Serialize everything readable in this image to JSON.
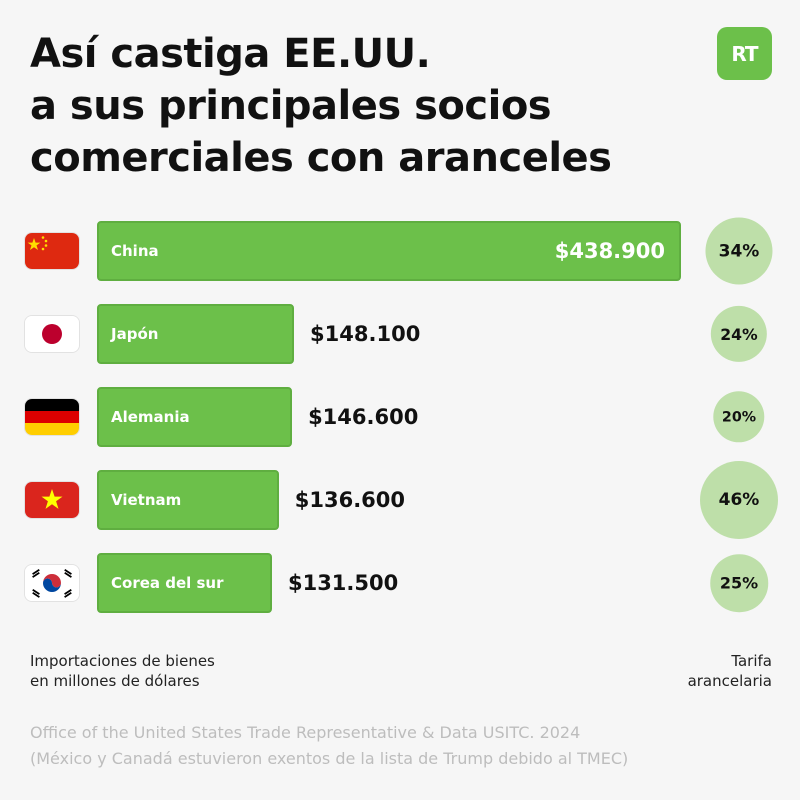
{
  "logo": {
    "text": "RT",
    "color": "#6cc04a"
  },
  "chart_data": {
    "type": "bar",
    "orientation": "horizontal",
    "title_lines": [
      "Así castiga EE.UU.",
      "a sus principales socios",
      "comerciales con aranceles"
    ],
    "categories": [
      "China",
      "Japón",
      "Alemania",
      "Vietnam",
      "Corea del sur"
    ],
    "flags": [
      "china-flag-icon",
      "japan-flag-icon",
      "germany-flag-icon",
      "vietnam-flag-icon",
      "south-korea-flag-icon"
    ],
    "series": [
      {
        "values": [
          438900,
          148100,
          146600,
          136600,
          131500
        ]
      }
    ],
    "value_labels": [
      "$438.900",
      "$148.100",
      "$146.600",
      "$136.600",
      "$131.500"
    ],
    "tariffs": [
      34,
      24,
      20,
      46,
      25
    ],
    "tariff_labels": [
      "34%",
      "24%",
      "20%",
      "46%",
      "25%"
    ],
    "xlabel_lines": [
      "Importaciones de bienes",
      "en millones de dólares"
    ],
    "tariff_label_lines": [
      "Tarifa",
      "arancelaria"
    ],
    "bar_color": "#6cc04a",
    "tariff_color": "#bedfa9"
  },
  "source_lines": [
    "Office of the United States Trade Representative & Data USITC. 2024",
    "(México y Canadá estuvieron exentos de la lista de Trump debido al TMEC)"
  ]
}
